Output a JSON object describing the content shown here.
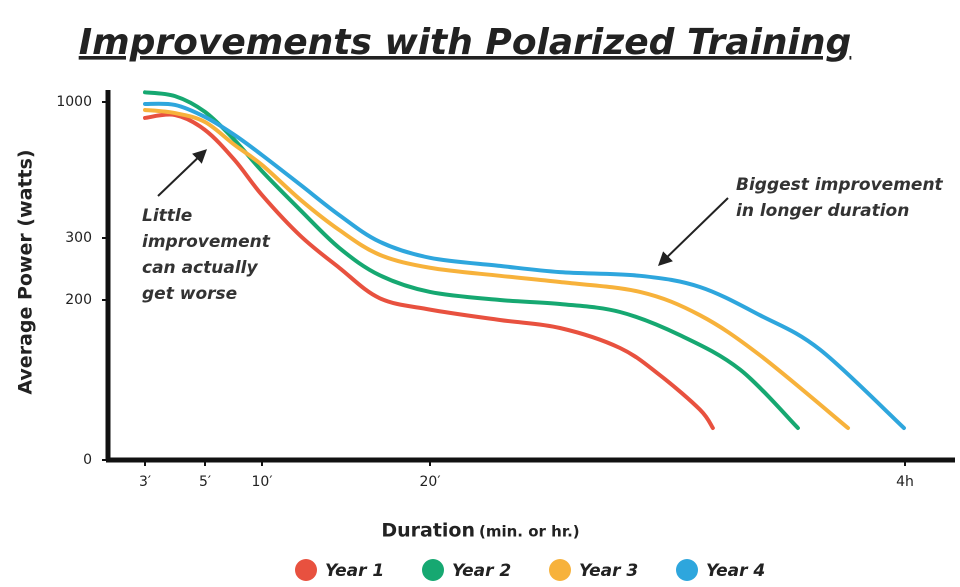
{
  "chart_data": {
    "type": "line",
    "title": "Improvements with Polarized Training",
    "x_label": "Duration",
    "x_label_note": "(min. or hr.)",
    "y_label": "Average Power (watts)",
    "xlim": [
      1.8,
      263
    ],
    "xticks": [
      {
        "value": 3,
        "label": "3′"
      },
      {
        "value": 5,
        "label": "5′"
      },
      {
        "value": 10,
        "label": "10′"
      },
      {
        "value": 20,
        "label": "20′"
      },
      {
        "value": 240,
        "label": "4h"
      }
    ],
    "ylim": [
      0,
      1100
    ],
    "yticks": [
      0,
      200,
      300,
      1000
    ],
    "legend": "bottom",
    "series": [
      {
        "name": "Year 1",
        "color": "#e8513f",
        "x": [
          3,
          4,
          5,
          7.6,
          10,
          12.3,
          14.6,
          17,
          20,
          52.4,
          80.2,
          108,
          126.5,
          145,
          151
        ],
        "values": [
          918,
          933,
          856,
          701,
          521,
          310,
          252,
          203,
          188,
          175,
          165,
          140,
          106,
          63,
          40
        ]
      },
      {
        "name": "Year 2",
        "color": "#16a871",
        "x": [
          3,
          4,
          5,
          7.6,
          10,
          12.3,
          14.6,
          17,
          20,
          52.4,
          80.2,
          108,
          135.8,
          163.6,
          190.4
        ],
        "values": [
          1051,
          1031,
          949,
          804,
          644,
          442,
          284,
          240,
          213,
          200,
          195,
          185,
          156,
          113,
          40
        ]
      },
      {
        "name": "Year 3",
        "color": "#f7b23b",
        "x": [
          3,
          4,
          5,
          7.6,
          10,
          12.3,
          14.6,
          17,
          20,
          52.4,
          80.2,
          117.3,
          145,
          172.8,
          213.6
        ],
        "values": [
          959,
          943,
          897,
          779,
          676,
          496,
          341,
          273,
          252,
          239,
          229,
          213,
          181,
          131,
          40
        ]
      },
      {
        "name": "Year 4",
        "color": "#2ea6dd",
        "x": [
          3,
          4,
          5,
          7.6,
          10,
          12.3,
          14.6,
          17,
          20,
          52.4,
          80.2,
          117.3,
          145,
          172.8,
          200.6,
          239.5
        ],
        "values": [
          990,
          985,
          923,
          830,
          727,
          573,
          418,
          294,
          268,
          255,
          245,
          239,
          221,
          181,
          138,
          40
        ]
      }
    ],
    "annotations": [
      {
        "lines": [
          "Little",
          "improvement",
          "can actually",
          "get worse"
        ]
      },
      {
        "lines": [
          "Biggest improvement",
          "in longer duration"
        ]
      }
    ]
  }
}
